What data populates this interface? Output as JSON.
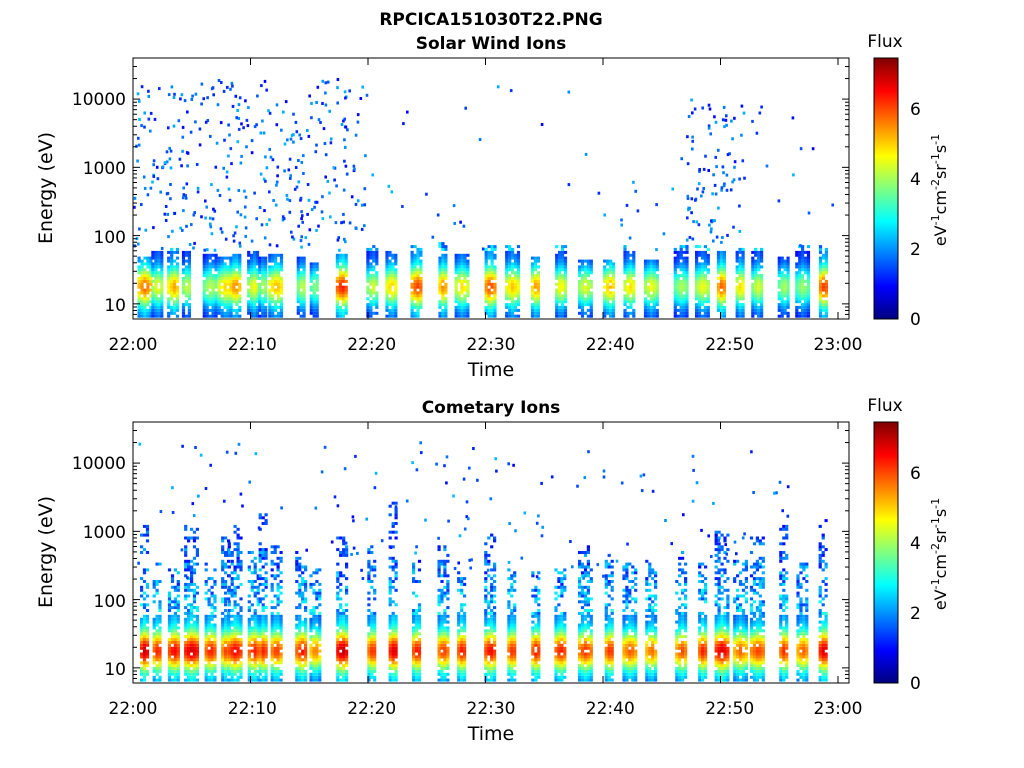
{
  "figure": {
    "title": "RPCICA151030T22.PNG"
  },
  "chart_data": [
    {
      "type": "heatmap",
      "title": "Solar Wind Ions",
      "xlabel": "Time",
      "ylabel": "Energy (eV)",
      "x_ticks": [
        "22:00",
        "22:10",
        "22:20",
        "22:30",
        "22:40",
        "22:50",
        "23:00"
      ],
      "y_ticks": [
        "10",
        "100",
        "1000",
        "10000"
      ],
      "y_scale": "log",
      "ylim": [
        6,
        40000
      ],
      "xlim": [
        "22:00",
        "23:00"
      ],
      "colorbar": {
        "label": "Flux",
        "unit": "eV-1cm-2sr-1s-1",
        "ticks": [
          "0",
          "2",
          "4",
          "6"
        ],
        "range": [
          0,
          7.4
        ]
      },
      "low_energy_bursts_minutes": [
        0.9,
        2.0,
        3.4,
        4.5,
        6.5,
        7.8,
        8.6,
        10.2,
        11.0,
        12.1,
        14.3,
        15.4,
        17.7,
        20.3,
        21.9,
        24.1,
        26.3,
        27.9,
        30.3,
        32.2,
        34.2,
        36.3,
        38.4,
        40.5,
        42.2,
        44.0,
        46.6,
        48.4,
        50.0,
        51.6,
        53.1,
        55.3,
        56.9,
        58.7
      ],
      "burst_peak_flux": [
        5.8,
        4.6,
        5.3,
        4.4,
        4.2,
        5.0,
        5.6,
        4.6,
        4.2,
        5.2,
        4.3,
        3.9,
        6.4,
        4.4,
        5.1,
        6.1,
        5.6,
        4.9,
        6.1,
        5.1,
        5.5,
        4.8,
        4.5,
        5.2,
        4.9,
        4.6,
        4.1,
        4.6,
        5.9,
        5.0,
        4.4,
        4.1,
        4.0,
        6.2
      ],
      "high_energy_activity": [
        {
          "from_minute": 0,
          "to_minute": 20,
          "energy_range": [
            60,
            20000
          ],
          "flux_level": 1.2
        },
        {
          "from_minute": 47,
          "to_minute": 52,
          "energy_range": [
            80,
            9000
          ],
          "flux_level": 1.5
        }
      ]
    },
    {
      "type": "heatmap",
      "title": "Cometary Ions",
      "xlabel": "Time",
      "ylabel": "Energy (eV)",
      "x_ticks": [
        "22:00",
        "22:10",
        "22:20",
        "22:30",
        "22:40",
        "22:50",
        "23:00"
      ],
      "y_ticks": [
        "10",
        "100",
        "1000",
        "10000"
      ],
      "y_scale": "log",
      "ylim": [
        6,
        40000
      ],
      "xlim": [
        "22:00",
        "23:00"
      ],
      "colorbar": {
        "label": "Flux",
        "unit": "eV-1cm-2sr-1s-1",
        "ticks": [
          "0",
          "2",
          "4",
          "6"
        ],
        "range": [
          0,
          7.4
        ]
      },
      "low_energy_bursts_minutes": [
        0.9,
        2.0,
        3.4,
        4.9,
        6.5,
        7.8,
        8.6,
        10.2,
        11.0,
        12.1,
        14.3,
        15.4,
        17.7,
        20.3,
        22.1,
        24.1,
        26.3,
        27.9,
        30.3,
        32.2,
        34.2,
        36.3,
        38.4,
        40.5,
        42.2,
        44.0,
        46.6,
        48.4,
        50.0,
        51.6,
        53.1,
        55.3,
        56.9,
        58.7
      ],
      "burst_peak_flux": [
        7.0,
        6.4,
        6.6,
        6.9,
        6.4,
        6.1,
        6.6,
        6.4,
        6.4,
        6.2,
        6.4,
        5.7,
        7.1,
        6.3,
        6.9,
        6.5,
        6.2,
        6.5,
        6.6,
        6.3,
        6.5,
        6.4,
        6.2,
        6.3,
        5.9,
        5.8,
        6.0,
        6.4,
        6.8,
        5.8,
        6.1,
        6.3,
        5.9,
        6.9
      ],
      "plume_top_energy_ev": [
        1500,
        400,
        300,
        1200,
        350,
        1500,
        1200,
        500,
        1800,
        600,
        500,
        300,
        800,
        600,
        3500,
        400,
        600,
        250,
        900,
        300,
        250,
        300,
        600,
        450,
        350,
        400,
        500,
        350,
        1200,
        400,
        800,
        1200,
        400,
        1500
      ]
    }
  ]
}
